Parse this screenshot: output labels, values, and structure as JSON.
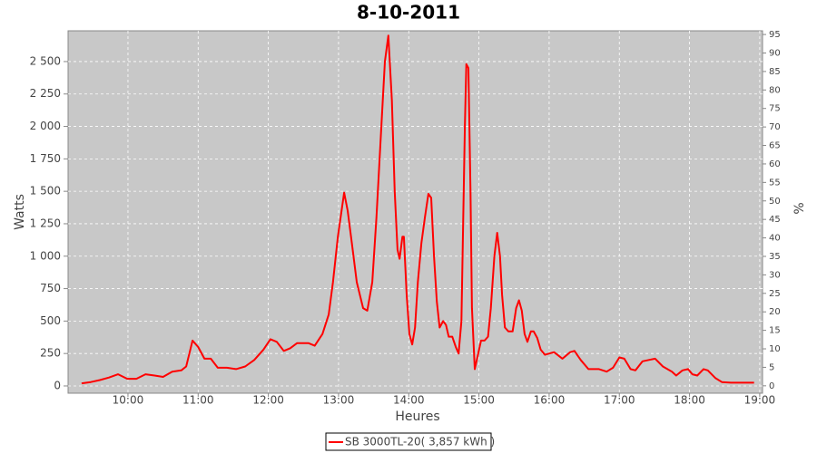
{
  "chart_data": {
    "type": "line",
    "title": "8-10-2011",
    "x_label": "Heures",
    "y_label": "Watts",
    "y2_label": "%",
    "xlim": [
      9.147,
      19.04
    ],
    "xticks": [
      {
        "value": 10,
        "label": "10:00"
      },
      {
        "value": 11,
        "label": "11:00"
      },
      {
        "value": 12,
        "label": "12:00"
      },
      {
        "value": 13,
        "label": "13:00"
      },
      {
        "value": 14,
        "label": "14:00"
      },
      {
        "value": 15,
        "label": "15:00"
      },
      {
        "value": 16,
        "label": "16:00"
      },
      {
        "value": 17,
        "label": "17:00"
      },
      {
        "value": 18,
        "label": "18:00"
      },
      {
        "value": 19,
        "label": "19:00"
      }
    ],
    "ylim": [
      -56,
      2737
    ],
    "yticks": [
      0,
      250,
      500,
      750,
      {
        "value": 1000,
        "label": "1 000"
      },
      {
        "value": 1250,
        "label": "1 250"
      },
      {
        "value": 1500,
        "label": "1 500"
      },
      {
        "value": 1750,
        "label": "1 750"
      },
      {
        "value": 2000,
        "label": "2 000"
      },
      {
        "value": 2250,
        "label": "2 250"
      },
      {
        "value": 2500,
        "label": "2 500"
      }
    ],
    "y2lim": [
      -2,
      96
    ],
    "y2ticks": [
      0,
      5,
      10,
      15,
      20,
      25,
      30,
      35,
      40,
      45,
      50,
      55,
      60,
      65,
      70,
      75,
      80,
      85,
      90,
      95
    ],
    "grid": true,
    "legend": "bottom",
    "x": [
      9.34,
      9.47,
      9.6,
      9.73,
      9.86,
      9.99,
      10.12,
      10.25,
      10.38,
      10.5,
      10.63,
      10.76,
      10.83,
      10.92,
      11.0,
      11.09,
      11.18,
      11.28,
      11.41,
      11.54,
      11.67,
      11.8,
      11.93,
      12.03,
      12.12,
      12.22,
      12.31,
      12.41,
      12.57,
      12.66,
      12.77,
      12.86,
      12.92,
      12.99,
      13.08,
      13.13,
      13.19,
      13.26,
      13.35,
      13.41,
      13.48,
      13.54,
      13.61,
      13.66,
      13.71,
      13.76,
      13.8,
      13.84,
      13.87,
      13.91,
      13.93,
      13.97,
      14.01,
      14.05,
      14.09,
      14.13,
      14.18,
      14.23,
      14.28,
      14.32,
      14.36,
      14.4,
      14.44,
      14.49,
      14.53,
      14.57,
      14.62,
      14.67,
      14.71,
      14.75,
      14.8,
      14.82,
      14.85,
      14.88,
      14.9,
      14.94,
      14.99,
      15.03,
      15.08,
      15.13,
      15.17,
      15.22,
      15.26,
      15.3,
      15.33,
      15.37,
      15.42,
      15.48,
      15.53,
      15.57,
      15.61,
      15.65,
      15.69,
      15.74,
      15.78,
      15.83,
      15.88,
      15.94,
      16.07,
      16.19,
      16.3,
      16.36,
      16.45,
      16.56,
      16.71,
      16.82,
      16.91,
      17.0,
      17.07,
      17.16,
      17.23,
      17.33,
      17.42,
      17.51,
      17.62,
      17.75,
      17.81,
      17.9,
      17.98,
      18.04,
      18.11,
      18.2,
      18.26,
      18.37,
      18.46,
      18.59,
      18.92
    ],
    "series": [
      {
        "name": "SB 3000TL-20( 3,857 kWh )",
        "color": "#ff0000",
        "values": [
          20,
          30,
          45,
          65,
          90,
          55,
          55,
          90,
          80,
          70,
          110,
          120,
          150,
          350,
          300,
          210,
          210,
          140,
          140,
          130,
          150,
          200,
          280,
          360,
          340,
          270,
          290,
          330,
          330,
          310,
          400,
          550,
          800,
          1150,
          1490,
          1350,
          1100,
          800,
          600,
          580,
          800,
          1300,
          2000,
          2500,
          2700,
          2200,
          1500,
          1050,
          980,
          1150,
          1150,
          700,
          400,
          320,
          450,
          800,
          1100,
          1300,
          1480,
          1450,
          1000,
          650,
          450,
          500,
          470,
          380,
          380,
          300,
          250,
          500,
          2000,
          2480,
          2450,
          1500,
          600,
          130,
          250,
          350,
          350,
          380,
          600,
          1000,
          1180,
          1000,
          700,
          450,
          420,
          420,
          600,
          660,
          580,
          400,
          340,
          420,
          420,
          370,
          280,
          240,
          260,
          210,
          260,
          270,
          200,
          130,
          130,
          110,
          140,
          220,
          210,
          130,
          120,
          190,
          200,
          210,
          150,
          110,
          80,
          120,
          130,
          90,
          80,
          130,
          120,
          60,
          30,
          25,
          25
        ]
      }
    ]
  }
}
